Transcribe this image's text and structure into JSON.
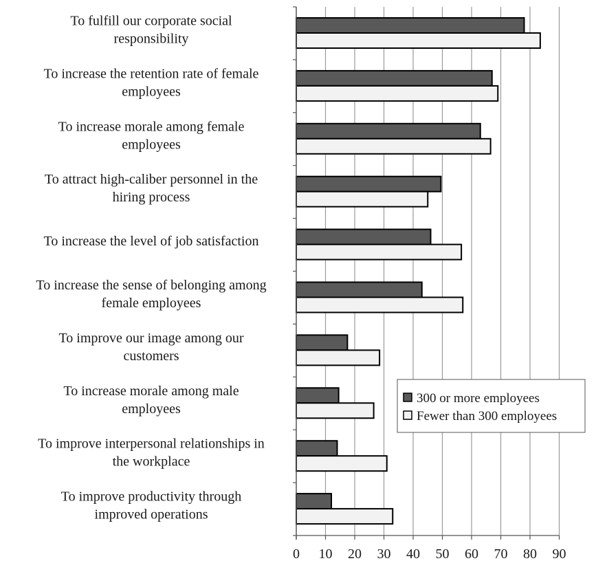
{
  "chart_data": {
    "type": "bar",
    "orientation": "horizontal",
    "categories": [
      [
        "To fulfill our corporate social",
        "responsibility"
      ],
      [
        "To increase the retention rate of female",
        "employees"
      ],
      [
        "To increase morale among female",
        "employees"
      ],
      [
        "To attract high-caliber personnel in the",
        "hiring process"
      ],
      [
        "To increase the level of job satisfaction"
      ],
      [
        "To increase the sense of belonging among",
        "female employees"
      ],
      [
        "To improve our image among our",
        "customers"
      ],
      [
        "To increase morale among male",
        "employees"
      ],
      [
        "To improve interpersonal relationships in",
        "the workplace"
      ],
      [
        "To improve productivity through",
        "improved operations"
      ]
    ],
    "series": [
      {
        "name": "300 or more employees",
        "color": "#595959",
        "values": [
          78,
          67,
          63,
          49.5,
          46,
          43,
          17.5,
          14.5,
          14,
          12
        ]
      },
      {
        "name": "Fewer than 300 employees",
        "color": "#f2f2f2",
        "values": [
          83.5,
          69,
          66.5,
          45,
          56.5,
          57,
          28.5,
          26.5,
          31,
          33
        ]
      }
    ],
    "xlim": [
      0,
      90
    ],
    "xticks": [
      "0",
      "10",
      "20",
      "30",
      "40",
      "50",
      "60",
      "70",
      "80",
      "90"
    ],
    "grid": "vertical",
    "legend_position": "lower-right"
  }
}
